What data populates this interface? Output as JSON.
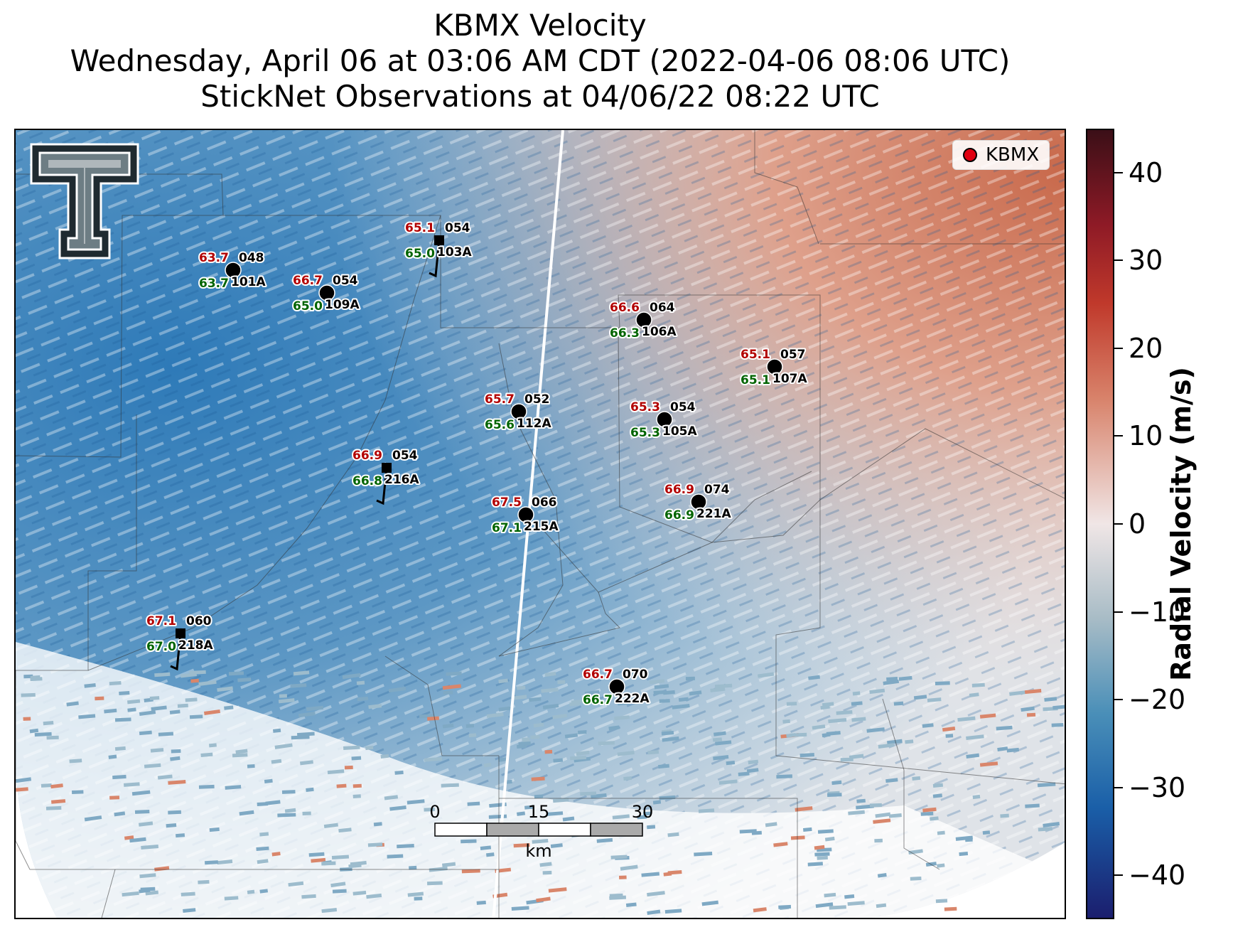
{
  "title": {
    "line1": "KBMX Velocity",
    "line2": "Wednesday, April 06 at 03:06 AM CDT (2022-04-06 08:06 UTC)",
    "line3": "StickNet Observations at 04/06/22 08:22 UTC"
  },
  "legend": {
    "label": "KBMX",
    "marker_color": "#e00010"
  },
  "colorbar": {
    "label": "Radial Velocity (m/s)",
    "ticks": [
      "40",
      "30",
      "20",
      "10",
      "0",
      "−10",
      "−20",
      "−30",
      "−40"
    ],
    "range": [
      -45,
      45
    ]
  },
  "scalebar": {
    "labels": [
      "0",
      "15",
      "30"
    ],
    "unit": "km"
  },
  "logo": {
    "icon": "texas-tech-double-t-logo"
  },
  "colors": {
    "inbound": "#1f6fb0",
    "outbound": "#c0552e",
    "neutral": "#e8e3e3"
  },
  "stations": [
    {
      "id": "101A",
      "temp": "63.7",
      "dew": "63.7",
      "dir": "048",
      "marker": "circle"
    },
    {
      "id": "109A",
      "temp": "66.7",
      "dew": "65.0",
      "dir": "054",
      "marker": "circle"
    },
    {
      "id": "103A",
      "temp": "65.1",
      "dew": "65.0",
      "dir": "054",
      "marker": "square"
    },
    {
      "id": "106A",
      "temp": "66.6",
      "dew": "66.3",
      "dir": "064",
      "marker": "circle"
    },
    {
      "id": "107A",
      "temp": "65.1",
      "dew": "65.1",
      "dir": "057",
      "marker": "circle"
    },
    {
      "id": "112A",
      "temp": "65.7",
      "dew": "65.6",
      "dir": "052",
      "marker": "circle"
    },
    {
      "id": "105A",
      "temp": "65.3",
      "dew": "65.3",
      "dir": "054",
      "marker": "circle"
    },
    {
      "id": "216A",
      "temp": "66.9",
      "dew": "66.8",
      "dir": "054",
      "marker": "square"
    },
    {
      "id": "215A",
      "temp": "67.5",
      "dew": "67.1",
      "dir": "066",
      "marker": "circle"
    },
    {
      "id": "221A",
      "temp": "66.9",
      "dew": "66.9",
      "dir": "074",
      "marker": "circle"
    },
    {
      "id": "218A",
      "temp": "67.1",
      "dew": "67.0",
      "dir": "060",
      "marker": "square"
    },
    {
      "id": "222A",
      "temp": "66.7",
      "dew": "66.7",
      "dir": "070",
      "marker": "circle"
    }
  ]
}
